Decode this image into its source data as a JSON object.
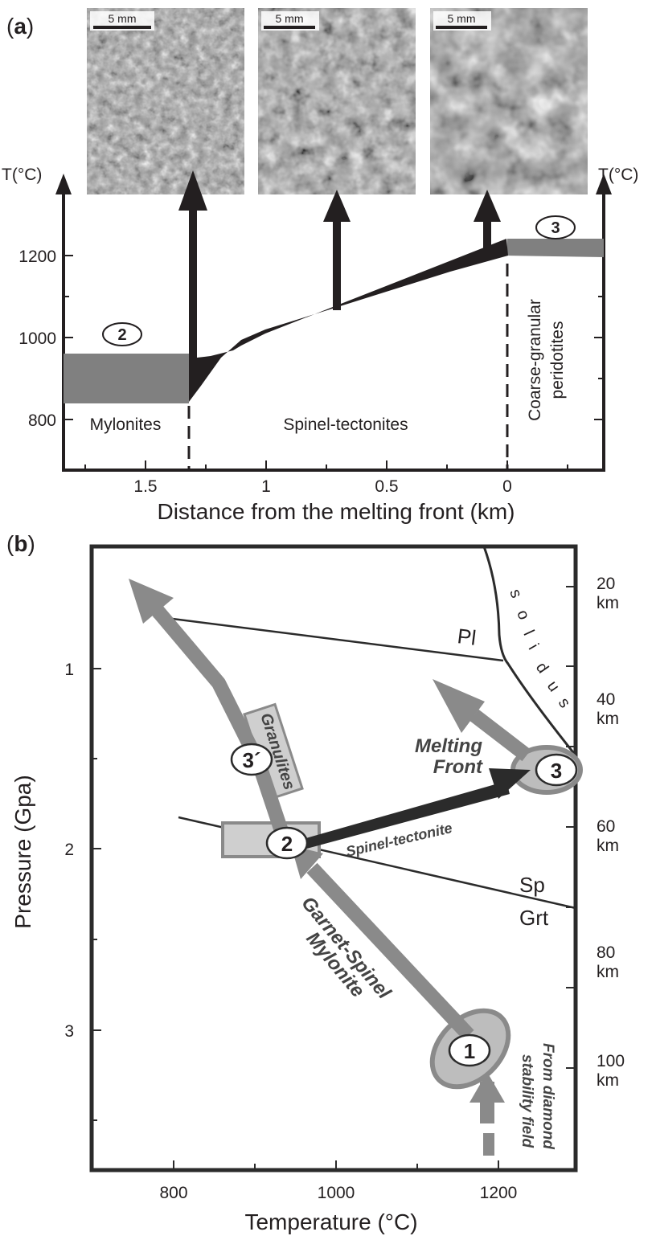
{
  "panel_a": {
    "label_open": "(",
    "label_letter": "a",
    "label_close": ")",
    "micrographs": [
      {
        "name": "mylonite",
        "scale_bar": "5 mm"
      },
      {
        "name": "spinel-tectonite",
        "scale_bar": "5 mm"
      },
      {
        "name": "coarse-granular",
        "scale_bar": "5 mm"
      }
    ],
    "y_label_left": "T(°C)",
    "y_label_right": "T(°C)",
    "y_ticks": [
      "1200",
      "1000",
      "800"
    ],
    "x_ticks": [
      "1.5",
      "1",
      "0.5",
      "0"
    ],
    "x_title": "Distance from the melting front (km)",
    "zone_mylonites": "Mylonites",
    "zone_spinel": "Spinel-tectonites",
    "zone_coarse_1": "Coarse-granular",
    "zone_coarse_2": "peridotites",
    "badge_2": "2",
    "badge_3": "3",
    "colors": {
      "grey_bar": "#808080",
      "dark_line": "#231f20"
    }
  },
  "panel_b": {
    "label_open": "(",
    "label_letter": "b",
    "label_close": ")",
    "y_title": "Pressure (Gpa)",
    "x_title": "Temperature (°C)",
    "x_ticks": [
      "800",
      "1000",
      "1200"
    ],
    "y_ticks": [
      "1",
      "2",
      "3"
    ],
    "depth_ticks": [
      {
        "value": "20",
        "unit": "km"
      },
      {
        "value": "40",
        "unit": "km"
      },
      {
        "value": "60",
        "unit": "km"
      },
      {
        "value": "80",
        "unit": "km"
      },
      {
        "value": "100",
        "unit": "km"
      }
    ],
    "solidus_letters": [
      "s",
      "o",
      "l",
      "i",
      "d",
      "u",
      "s"
    ],
    "pl": "Pl",
    "sp": "Sp",
    "grt": "Grt",
    "granulites": "Granulites",
    "spinel_tectonite": "Spinel-tectonite",
    "melting_front_1": "Melting",
    "melting_front_2": "Front",
    "garnet_spinel": "Garnet-Spinel",
    "mylonite": "Mylonite",
    "diamond_1": "From diamond",
    "diamond_2": "stability field",
    "badges": {
      "one": "1",
      "two": "2",
      "three": "3",
      "three_prime": "3´"
    },
    "colors": {
      "grey_arrow": "#8a8a8a",
      "dark_arrow": "#2b2b2b",
      "box_fill": "#cfcfcf"
    }
  }
}
